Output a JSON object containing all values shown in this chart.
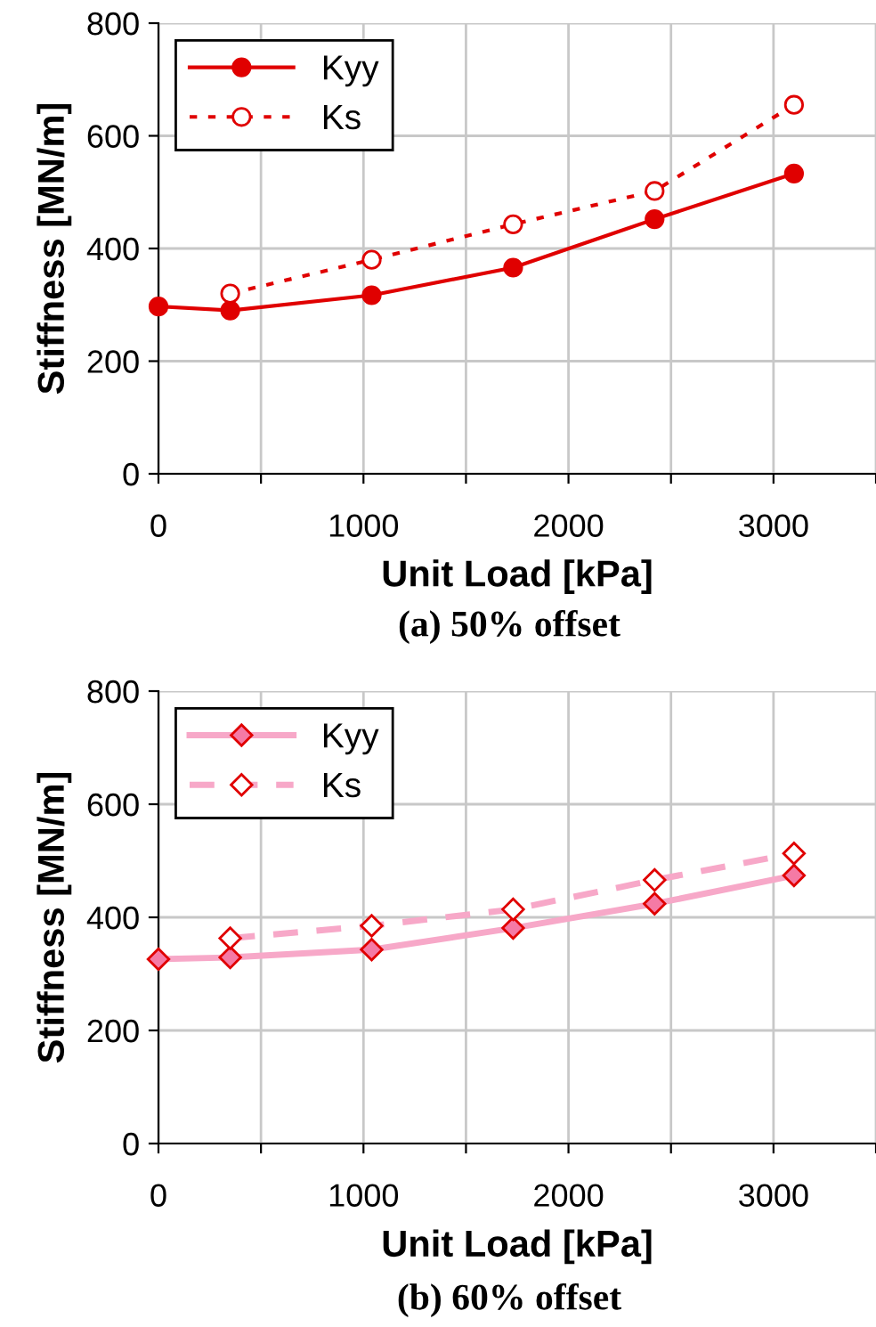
{
  "chart_data": [
    {
      "type": "line",
      "title": "(a) 50% offset",
      "xlabel": "Unit Load [kPa]",
      "ylabel": "Stiffness [MN/m]",
      "xlim": [
        0,
        3500
      ],
      "xticks": [
        0,
        {
          "value": 500,
          "label": null
        },
        1000,
        {
          "value": 1500,
          "label": null
        },
        2000,
        {
          "value": 2500,
          "label": null
        },
        3000,
        {
          "value": 3500,
          "label": null
        }
      ],
      "ylim": [
        0,
        800
      ],
      "yticks": [
        0,
        200,
        400,
        600,
        800
      ],
      "grid": true,
      "legend": "top left",
      "series": [
        {
          "name": "Kyy",
          "color": "#e00000",
          "marker": "circle",
          "line_style": "solid",
          "x": [
            0,
            350,
            1040,
            1730,
            2420,
            3100
          ],
          "values": [
            297,
            290,
            317,
            366,
            452,
            533
          ]
        },
        {
          "name": "Ks",
          "color": "#e00000",
          "marker": "circle",
          "line_style": "dotted",
          "x": [
            350,
            1040,
            1730,
            2420,
            3100
          ],
          "values": [
            320,
            380,
            443,
            502,
            655
          ]
        }
      ]
    },
    {
      "type": "line",
      "title": "(b) 60% offset",
      "xlabel": "Unit Load [kPa]",
      "ylabel": "Stiffness [MN/m]",
      "xlim": [
        0,
        3500
      ],
      "xticks": [
        0,
        {
          "value": 500,
          "label": null
        },
        1000,
        {
          "value": 1500,
          "label": null
        },
        2000,
        {
          "value": 2500,
          "label": null
        },
        3000,
        {
          "value": 3500,
          "label": null
        }
      ],
      "ylim": [
        0,
        800
      ],
      "yticks": [
        0,
        200,
        400,
        600,
        800
      ],
      "grid": true,
      "legend": "top left",
      "series": [
        {
          "name": "Kyy",
          "color": "#f7a8c8",
          "marker": "diamond",
          "line_style": "solid",
          "x": [
            0,
            350,
            1040,
            1730,
            2420,
            3100
          ],
          "values": [
            326,
            329,
            343,
            381,
            424,
            474
          ]
        },
        {
          "name": "Ks",
          "color": "#f7a8c8",
          "marker": "diamond",
          "line_style": "dashed",
          "x": [
            350,
            1040,
            1730,
            2420,
            3100
          ],
          "values": [
            363,
            385,
            414,
            466,
            513
          ]
        }
      ]
    }
  ]
}
